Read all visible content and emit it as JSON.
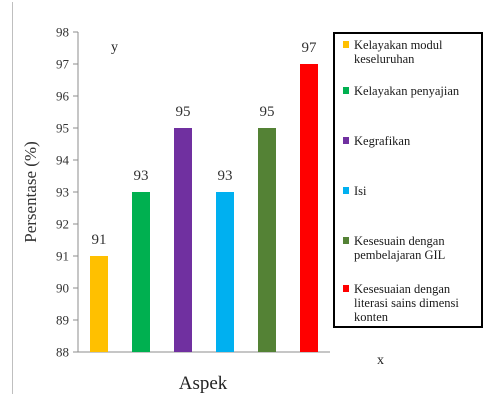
{
  "chart_data": {
    "type": "bar",
    "xlabel": "Aspek",
    "ylabel": "Persentase (%)",
    "ylim": [
      88,
      98
    ],
    "yticks": [
      88,
      89,
      90,
      91,
      92,
      93,
      94,
      95,
      96,
      97,
      98
    ],
    "grid": false,
    "legend_position": "right",
    "bars": [
      {
        "category": "Kelayakan modul keseluruhan",
        "value": 91,
        "label": "91",
        "color": "#FFC000"
      },
      {
        "category": "Kelayakan penyajian",
        "value": 93,
        "label": "93",
        "color": "#00B050"
      },
      {
        "category": "Kegrafikan",
        "value": 95,
        "label": "95",
        "color": "#7030A0"
      },
      {
        "category": "Isi",
        "value": 93,
        "label": "93",
        "color": "#00B0F0"
      },
      {
        "category": "Kesesuain dengan pembelajaran GIL",
        "value": 95,
        "label": "95",
        "color": "#548235"
      },
      {
        "category": "Kesesuaian dengan literasi sains dimensi konten",
        "value": 97,
        "label": "97",
        "color": "#FF0000"
      }
    ],
    "annotations": {
      "y_marker": "y",
      "x_marker": "x"
    }
  }
}
